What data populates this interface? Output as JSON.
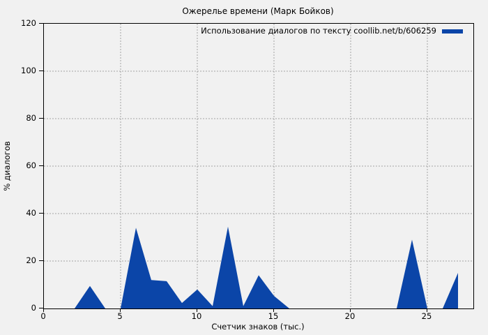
{
  "title": "Ожерелье времени (Марк Бойков)",
  "legend": {
    "label": "Использование диалогов по тексту coollib.net/b/606259"
  },
  "axes": {
    "xlabel": "Счетчик знаков (тыс.)",
    "ylabel": "% диалогов"
  },
  "colors": {
    "fill": "#0b45a8",
    "background": "#f1f1f1",
    "grid": "#a2a2a2",
    "axis": "#000000"
  },
  "chart_data": {
    "type": "area",
    "title": "Ожерелье времени (Марк Бойков)",
    "legend": "Использование диалогов по тексту coollib.net/b/606259",
    "xlabel": "Счетчик знаков (тыс.)",
    "ylabel": "% диалогов",
    "xlim": [
      0,
      28
    ],
    "ylim": [
      0,
      120
    ],
    "x_ticks": [
      0,
      5,
      10,
      15,
      20,
      25
    ],
    "y_ticks": [
      0,
      20,
      40,
      60,
      80,
      100,
      120
    ],
    "grid": true,
    "legend_position": "top-right",
    "x": [
      0,
      1,
      2,
      3,
      4,
      5,
      6,
      7,
      8,
      9,
      10,
      11,
      12,
      13,
      14,
      15,
      16,
      17,
      18,
      19,
      20,
      21,
      22,
      23,
      24,
      25,
      26,
      27
    ],
    "values": [
      0,
      0,
      0,
      9.5,
      0,
      0,
      34,
      12,
      11.5,
      2.3,
      8,
      1,
      34.5,
      1,
      14,
      5.3,
      0,
      0,
      0,
      0,
      0,
      0,
      0,
      0,
      29,
      0,
      0,
      15
    ]
  }
}
